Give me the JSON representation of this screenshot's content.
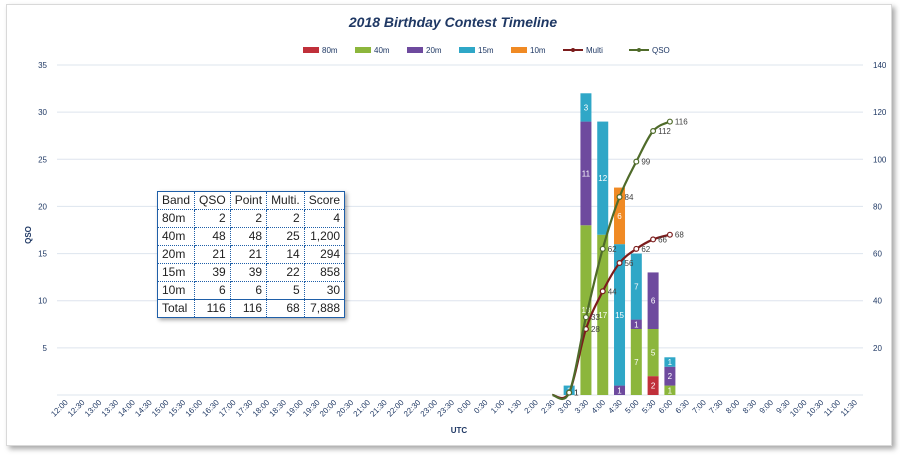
{
  "chart_data": {
    "type": "bar",
    "title": "2018 Birthday  Contest Timeline",
    "xlabel": "UTC",
    "ylabel": "QSO",
    "ylim": [
      0,
      35
    ],
    "y2lim": [
      0,
      140
    ],
    "yticks": [
      "",
      "5",
      "10",
      "15",
      "20",
      "25",
      "30",
      "35"
    ],
    "y2ticks": [
      "",
      "20",
      "40",
      "60",
      "80",
      "100",
      "120",
      "140"
    ],
    "grid": true,
    "legend_position": "top",
    "categories": [
      "12:00",
      "12:30",
      "13:00",
      "13:30",
      "14:00",
      "14:30",
      "15:00",
      "15:30",
      "16:00",
      "16:30",
      "17:00",
      "17:30",
      "18:00",
      "18:30",
      "19:00",
      "19:30",
      "20:00",
      "20:30",
      "21:00",
      "21:30",
      "22:00",
      "22:30",
      "23:00",
      "23:30",
      "0:00",
      "0:30",
      "1:00",
      "1:30",
      "2:00",
      "2:30",
      "3:00",
      "3:30",
      "4:00",
      "4:30",
      "5:00",
      "5:30",
      "6:00",
      "6:30",
      "7:00",
      "7:30",
      "8:00",
      "8:30",
      "9:00",
      "9:30",
      "10:00",
      "10:30",
      "11:00",
      "11:30"
    ],
    "series": [
      {
        "name": "80m",
        "color": "#c0303a",
        "values": [
          0,
          0,
          0,
          0,
          0,
          0,
          0,
          0,
          0,
          0,
          0,
          0,
          0,
          0,
          0,
          0,
          0,
          0,
          0,
          0,
          0,
          0,
          0,
          0,
          0,
          0,
          0,
          0,
          0,
          0,
          0,
          0,
          0,
          0,
          0,
          2,
          0,
          0,
          0,
          0,
          0,
          0,
          0,
          0,
          0,
          0,
          0,
          0
        ]
      },
      {
        "name": "40m",
        "color": "#8cb63c",
        "values": [
          0,
          0,
          0,
          0,
          0,
          0,
          0,
          0,
          0,
          0,
          0,
          0,
          0,
          0,
          0,
          0,
          0,
          0,
          0,
          0,
          0,
          0,
          0,
          0,
          0,
          0,
          0,
          0,
          0,
          0,
          0,
          18,
          17,
          0,
          7,
          5,
          1,
          0,
          0,
          0,
          0,
          0,
          0,
          0,
          0,
          0,
          0,
          0
        ]
      },
      {
        "name": "20m",
        "color": "#6e4a9e",
        "values": [
          0,
          0,
          0,
          0,
          0,
          0,
          0,
          0,
          0,
          0,
          0,
          0,
          0,
          0,
          0,
          0,
          0,
          0,
          0,
          0,
          0,
          0,
          0,
          0,
          0,
          0,
          0,
          0,
          0,
          0,
          0,
          11,
          0,
          1,
          1,
          6,
          2,
          0,
          0,
          0,
          0,
          0,
          0,
          0,
          0,
          0,
          0,
          0
        ]
      },
      {
        "name": "15m",
        "color": "#2fa7c7",
        "values": [
          0,
          0,
          0,
          0,
          0,
          0,
          0,
          0,
          0,
          0,
          0,
          0,
          0,
          0,
          0,
          0,
          0,
          0,
          0,
          0,
          0,
          0,
          0,
          0,
          0,
          0,
          0,
          0,
          0,
          0,
          1,
          3,
          12,
          15,
          7,
          0,
          1,
          0,
          0,
          0,
          0,
          0,
          0,
          0,
          0,
          0,
          0,
          0
        ]
      },
      {
        "name": "10m",
        "color": "#f08a24",
        "values": [
          0,
          0,
          0,
          0,
          0,
          0,
          0,
          0,
          0,
          0,
          0,
          0,
          0,
          0,
          0,
          0,
          0,
          0,
          0,
          0,
          0,
          0,
          0,
          0,
          0,
          0,
          0,
          0,
          0,
          0,
          0,
          0,
          0,
          6,
          0,
          0,
          0,
          0,
          0,
          0,
          0,
          0,
          0,
          0,
          0,
          0,
          0,
          0
        ]
      }
    ],
    "lines": [
      {
        "name": "Multi",
        "color": "#7b1c1c",
        "axis": "right",
        "points": [
          [
            "2:30",
            0
          ],
          [
            "3:00",
            1
          ],
          [
            "3:30",
            28
          ],
          [
            "4:00",
            44
          ],
          [
            "4:30",
            56
          ],
          [
            "5:00",
            62
          ],
          [
            "5:30",
            66
          ],
          [
            "6:00",
            68
          ]
        ],
        "labels": [
          "",
          "1",
          "28",
          "44",
          "56",
          "62",
          "66",
          "68"
        ]
      },
      {
        "name": "QSO",
        "color": "#4f6b2a",
        "axis": "right",
        "points": [
          [
            "2:30",
            0
          ],
          [
            "3:00",
            1
          ],
          [
            "3:30",
            33
          ],
          [
            "4:00",
            62
          ],
          [
            "4:30",
            84
          ],
          [
            "5:00",
            99
          ],
          [
            "5:30",
            112
          ],
          [
            "6:00",
            116
          ]
        ],
        "labels": [
          "",
          "1",
          "33",
          "62",
          "84",
          "99",
          "112",
          "116"
        ]
      }
    ]
  },
  "score_table": {
    "headers": [
      "Band",
      "QSO",
      "Point",
      "Multi.",
      "Score"
    ],
    "rows": [
      [
        "80m",
        "2",
        "2",
        "2",
        "4"
      ],
      [
        "40m",
        "48",
        "48",
        "25",
        "1,200"
      ],
      [
        "20m",
        "21",
        "21",
        "14",
        "294"
      ],
      [
        "15m",
        "39",
        "39",
        "22",
        "858"
      ],
      [
        "10m",
        "6",
        "6",
        "5",
        "30"
      ]
    ],
    "total": [
      "Total",
      "116",
      "116",
      "68",
      "7,888"
    ]
  }
}
